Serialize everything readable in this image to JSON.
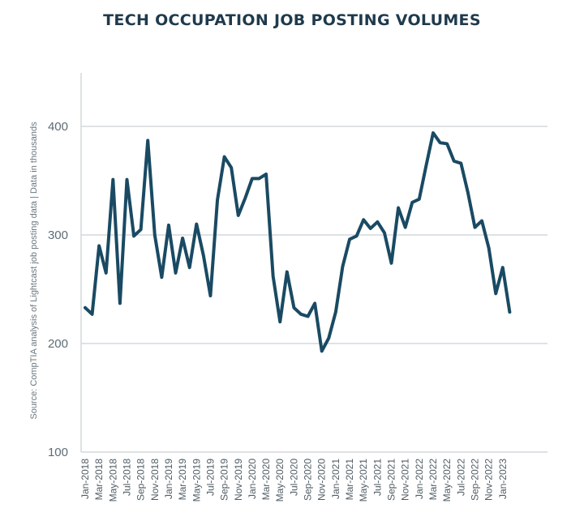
{
  "chart_data": {
    "type": "line",
    "title": "TECH OCCUPATION JOB POSTING VOLUMES",
    "ylabel": "Source: CompTIA analysis of Lightcast job posting data | Data in thousands",
    "xlabel": "",
    "ylim": [
      100,
      450
    ],
    "yticks": [
      100,
      200,
      300,
      400
    ],
    "grid": true,
    "line_color": "#1a4a63",
    "x_tick_labels": [
      "Jan-2018",
      "Mar-2018",
      "May-2018",
      "Jul-2018",
      "Sep-2018",
      "Nov-2018",
      "Jan-2019",
      "Mar-2019",
      "May-2019",
      "Jul-2019",
      "Sep-2019",
      "Nov-2019",
      "Jan-2020",
      "Mar-2020",
      "May-2020",
      "Jul-2020",
      "Sep-2020",
      "Nov-2020",
      "Jan-2021",
      "Mar-2021",
      "May-2021",
      "Jul-2021",
      "Sep-2021",
      "Nov-2021",
      "Jan-2022",
      "Mar-2022",
      "May-2022",
      "Jul-2022",
      "Sep-2022",
      "Nov-2022",
      "Jan-2023"
    ],
    "x": [
      "Jan-2018",
      "Feb-2018",
      "Mar-2018",
      "Apr-2018",
      "May-2018",
      "Jun-2018",
      "Jul-2018",
      "Aug-2018",
      "Sep-2018",
      "Oct-2018",
      "Nov-2018",
      "Dec-2018",
      "Jan-2019",
      "Feb-2019",
      "Mar-2019",
      "Apr-2019",
      "May-2019",
      "Jun-2019",
      "Jul-2019",
      "Aug-2019",
      "Sep-2019",
      "Oct-2019",
      "Nov-2019",
      "Dec-2019",
      "Jan-2020",
      "Feb-2020",
      "Mar-2020",
      "Apr-2020",
      "May-2020",
      "Jun-2020",
      "Jul-2020",
      "Aug-2020",
      "Sep-2020",
      "Oct-2020",
      "Nov-2020",
      "Dec-2020",
      "Jan-2021",
      "Feb-2021",
      "Mar-2021",
      "Apr-2021",
      "May-2021",
      "Jun-2021",
      "Jul-2021",
      "Aug-2021",
      "Sep-2021",
      "Oct-2021",
      "Nov-2021",
      "Dec-2021",
      "Jan-2022",
      "Feb-2022",
      "Mar-2022",
      "Apr-2022",
      "May-2022",
      "Jun-2022",
      "Jul-2022",
      "Aug-2022",
      "Sep-2022",
      "Oct-2022",
      "Nov-2022",
      "Dec-2022",
      "Jan-2023",
      "Feb-2023"
    ],
    "series": [
      {
        "values": [
          233,
          227,
          290,
          265,
          351,
          237,
          351,
          299,
          305,
          387,
          300,
          261,
          309,
          265,
          297,
          270,
          310,
          281,
          244,
          332,
          372,
          362,
          318,
          334,
          352,
          352,
          356,
          262,
          220,
          266,
          233,
          227,
          225,
          237,
          193,
          205,
          229,
          271,
          296,
          299,
          314,
          306,
          312,
          302,
          274,
          325,
          307,
          330,
          333,
          364,
          394,
          385,
          384,
          368,
          366,
          339,
          307,
          313,
          288,
          246,
          270,
          229
        ]
      }
    ]
  }
}
